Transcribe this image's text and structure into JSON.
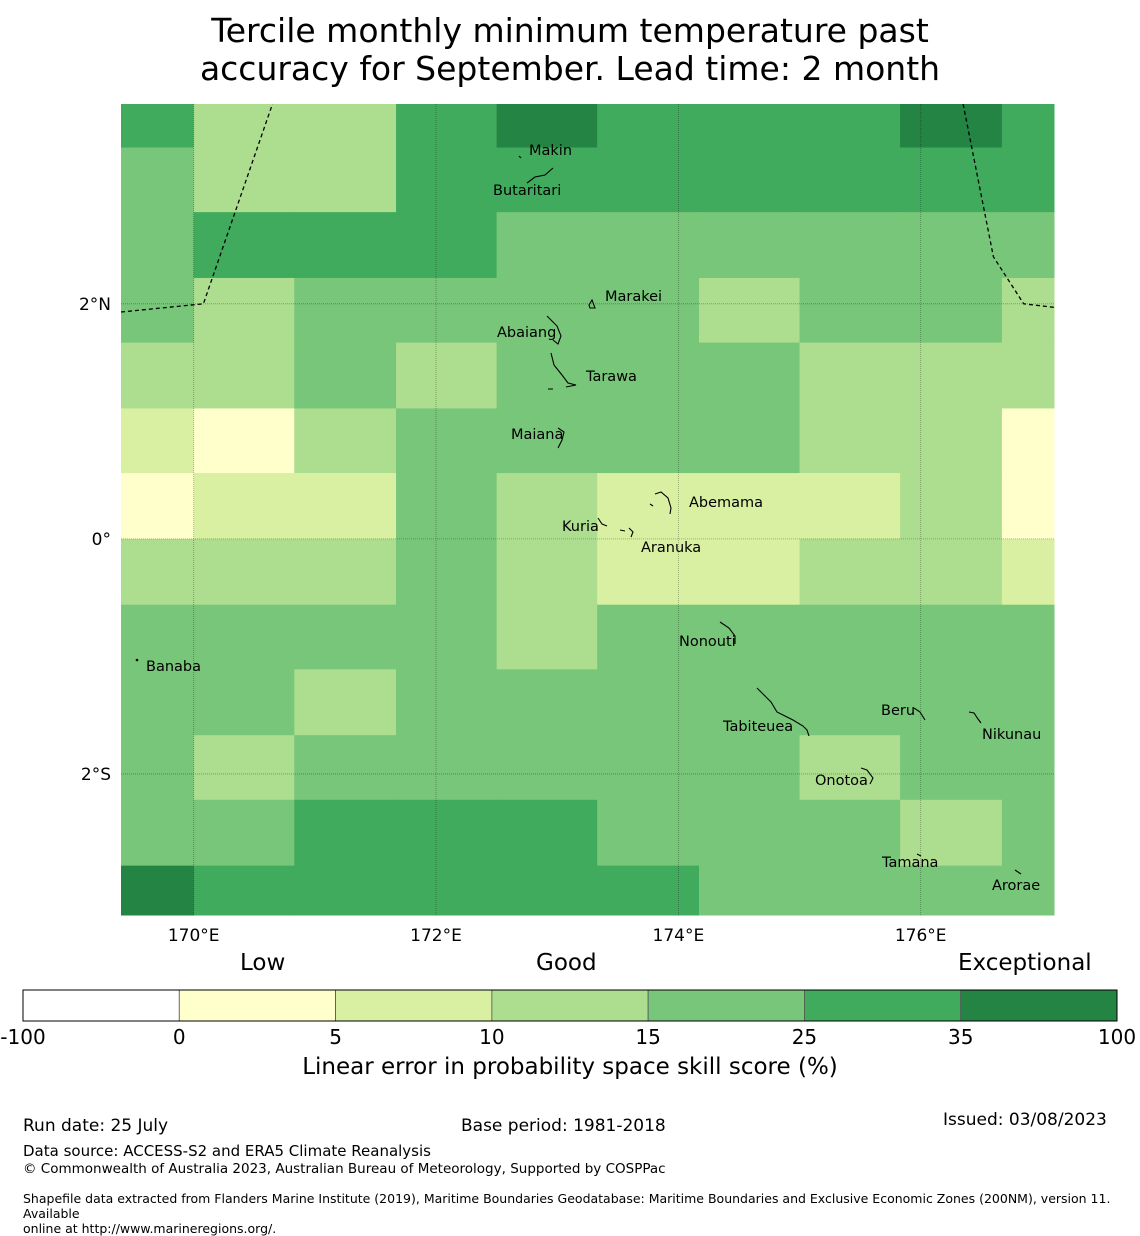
{
  "title": {
    "line1": "Tercile monthly minimum temperature past",
    "line2": "accuracy for September. Lead time: 2 month"
  },
  "map": {
    "lon_range": [
      169.4,
      177.1
    ],
    "lat_range": [
      -3.2,
      3.7
    ],
    "lon_ticks": [
      {
        "value": 170,
        "label": "170°E"
      },
      {
        "value": 172,
        "label": "172°E"
      },
      {
        "value": 174,
        "label": "174°E"
      },
      {
        "value": 176,
        "label": "176°E"
      }
    ],
    "lat_ticks": [
      {
        "value": 2,
        "label": "2°N"
      },
      {
        "value": 0,
        "label": "0°"
      },
      {
        "value": -2,
        "label": "2°S"
      }
    ],
    "grid_lines": true,
    "grid_cell_lons": [
      169.4,
      170.0,
      170.83,
      171.67,
      172.5,
      173.33,
      174.17,
      175.0,
      175.83,
      176.67,
      177.1
    ],
    "grid_cell_lats": [
      3.7,
      3.33,
      2.78,
      2.22,
      1.67,
      1.11,
      0.56,
      0.0,
      -0.56,
      -1.11,
      -1.67,
      -2.22,
      -2.78,
      -3.2
    ],
    "skill_category_grid": [
      [
        5,
        3,
        3,
        5,
        6,
        5,
        5,
        5,
        6,
        5
      ],
      [
        4,
        3,
        3,
        5,
        5,
        5,
        5,
        5,
        5,
        5
      ],
      [
        4,
        5,
        5,
        5,
        4,
        4,
        4,
        4,
        4,
        4
      ],
      [
        4,
        3,
        4,
        4,
        4,
        4,
        3,
        4,
        4,
        3
      ],
      [
        3,
        3,
        4,
        3,
        4,
        4,
        4,
        3,
        3,
        3
      ],
      [
        2,
        1,
        3,
        4,
        4,
        4,
        4,
        3,
        3,
        1
      ],
      [
        1,
        2,
        2,
        4,
        3,
        2,
        2,
        2,
        3,
        1
      ],
      [
        3,
        3,
        3,
        4,
        3,
        2,
        2,
        3,
        3,
        2
      ],
      [
        4,
        4,
        4,
        4,
        3,
        4,
        4,
        4,
        4,
        4
      ],
      [
        4,
        4,
        3,
        4,
        4,
        4,
        4,
        4,
        4,
        4
      ],
      [
        4,
        3,
        4,
        4,
        4,
        4,
        4,
        3,
        4,
        4
      ],
      [
        4,
        4,
        5,
        5,
        5,
        4,
        4,
        4,
        3,
        4
      ],
      [
        6,
        5,
        5,
        5,
        5,
        5,
        4,
        4,
        4,
        4
      ]
    ],
    "places": [
      {
        "name": "Makin",
        "lon": 172.95,
        "lat": 3.33
      },
      {
        "name": "Butaritari",
        "lon": 172.78,
        "lat": 3.0
      },
      {
        "name": "Marakei",
        "lon": 173.43,
        "lat": 2.1
      },
      {
        "name": "Abaiang",
        "lon": 172.77,
        "lat": 1.81
      },
      {
        "name": "Tarawa",
        "lon": 173.5,
        "lat": 1.45
      },
      {
        "name": "Maiana",
        "lon": 172.73,
        "lat": 0.97
      },
      {
        "name": "Abemama",
        "lon": 174.41,
        "lat": 0.41
      },
      {
        "name": "Kuria",
        "lon": 173.22,
        "lat": 0.22
      },
      {
        "name": "Aranuka",
        "lon": 173.79,
        "lat": 0.04
      },
      {
        "name": "Nonouti",
        "lon": 174.24,
        "lat": -0.73
      },
      {
        "name": "Banaba",
        "lon": 169.67,
        "lat": -0.93
      },
      {
        "name": "Tabiteuea",
        "lon": 174.68,
        "lat": -1.43
      },
      {
        "name": "Beru",
        "lon": 175.81,
        "lat": -1.3
      },
      {
        "name": "Nikunau",
        "lon": 176.77,
        "lat": -1.49
      },
      {
        "name": "Onotoa",
        "lon": 175.47,
        "lat": -1.95
      },
      {
        "name": "Tamana",
        "lon": 175.95,
        "lat": -2.6
      },
      {
        "name": "Arorae",
        "lon": 176.8,
        "lat": -2.78
      }
    ]
  },
  "legend": {
    "category_labels": [
      "Low",
      "Good",
      "Exceptional"
    ],
    "ticks": [
      "-100",
      "0",
      "5",
      "10",
      "15",
      "25",
      "35",
      "100"
    ],
    "colors": [
      "#ffffff",
      "#ffffcc",
      "#d9f0a3",
      "#addd8e",
      "#78c679",
      "#41ab5d",
      "#238443"
    ],
    "title": "Linear error in probability space skill score (%)"
  },
  "footer": {
    "run_date": "Run date: 25 July",
    "base_period": "Base period: 1981-2018",
    "issued": "Issued: 03/08/2023",
    "data_source": "Data source: ACCESS-S2 and ERA5 Climate Reanalysis",
    "copyright": "© Commonwealth of Australia 2023, Australian Bureau of Meteorology, Supported by COSPPac",
    "shapefile_line1": "Shapefile data extracted from Flanders Marine Institute (2019), Maritime Boundaries Geodatabase: Maritime Boundaries and Exclusive Economic Zones (200NM), version 11. Available",
    "shapefile_line2": "online at http://www.marineregions.org/."
  }
}
